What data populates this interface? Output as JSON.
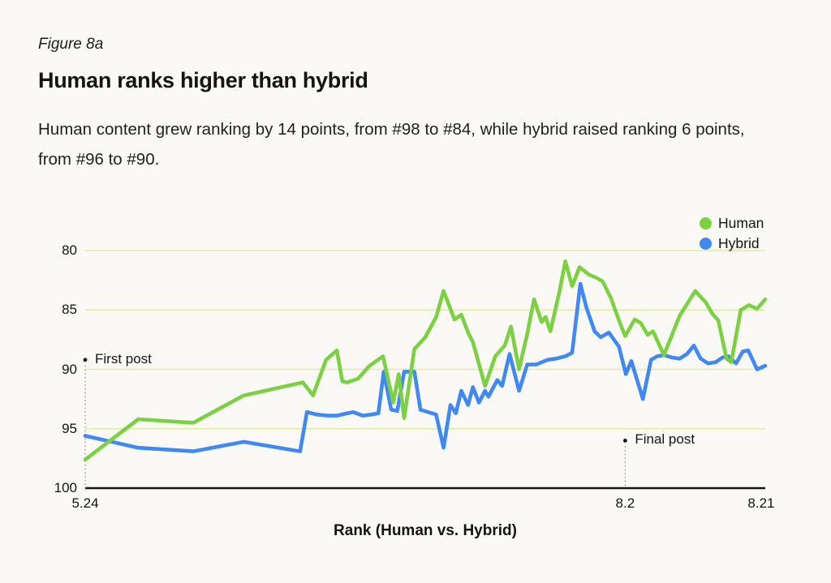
{
  "header": {
    "figure_label": "Figure 8a",
    "title": "Human ranks higher than hybrid",
    "subtitle": "Human content grew ranking by 14 points, from #98 to #84, while hybrid raised ranking 6 points, from #96 to #90."
  },
  "chart_data": {
    "type": "line",
    "title": "Human ranks higher than hybrid",
    "x_axis": {
      "label": "Rank (Human vs. Hybrid)",
      "ticks": [
        {
          "label": "5.24",
          "pct": 0
        },
        {
          "label": "8.2",
          "pct": 79.4
        },
        {
          "label": "8.21",
          "pct": 99.4
        }
      ]
    },
    "y_axis": {
      "min": 80,
      "max": 100,
      "inverted": true,
      "grid": true,
      "ticks": [
        {
          "label": "80",
          "rank": 80
        },
        {
          "label": "85",
          "rank": 85
        },
        {
          "label": "90",
          "rank": 90
        },
        {
          "label": "95",
          "rank": 95
        },
        {
          "label": "100",
          "rank": 100
        }
      ]
    },
    "annotations": [
      {
        "label": "First post",
        "x_pct": 0,
        "rank": 89.2
      },
      {
        "label": "Final post",
        "x_pct": 79.4,
        "rank": 96.0
      }
    ],
    "legend_position": "top-right",
    "series": [
      {
        "name": "Human",
        "color": "#7cd142",
        "points": [
          [
            0,
            97.6
          ],
          [
            7.8,
            94.2
          ],
          [
            15.9,
            94.5
          ],
          [
            23.3,
            92.2
          ],
          [
            32,
            91.1
          ],
          [
            33.5,
            92.2
          ],
          [
            35.4,
            89.2
          ],
          [
            37,
            88.4
          ],
          [
            37.8,
            91
          ],
          [
            38.5,
            91.1
          ],
          [
            40.1,
            90.8
          ],
          [
            41.8,
            89.7
          ],
          [
            43.8,
            88.9
          ],
          [
            45.3,
            92.8
          ],
          [
            46.1,
            90.4
          ],
          [
            46.9,
            94.1
          ],
          [
            48.4,
            88.3
          ],
          [
            50,
            87.3
          ],
          [
            51.6,
            85.6
          ],
          [
            52.7,
            83.4
          ],
          [
            54.3,
            85.8
          ],
          [
            55.3,
            85.4
          ],
          [
            56.3,
            86.9
          ],
          [
            57,
            87.7
          ],
          [
            58.8,
            91.4
          ],
          [
            60.3,
            88.9
          ],
          [
            61.7,
            88
          ],
          [
            62.6,
            86.4
          ],
          [
            63.8,
            90
          ],
          [
            65,
            87
          ],
          [
            66,
            84.1
          ],
          [
            67.1,
            86
          ],
          [
            67.7,
            85.6
          ],
          [
            68.4,
            86.8
          ],
          [
            69.8,
            83.3
          ],
          [
            70.6,
            80.9
          ],
          [
            71.6,
            83
          ],
          [
            72.7,
            81.4
          ],
          [
            74,
            82
          ],
          [
            75.2,
            82.3
          ],
          [
            76.1,
            82.6
          ],
          [
            77.3,
            84
          ],
          [
            78.5,
            85.9
          ],
          [
            79.4,
            87.2
          ],
          [
            80.8,
            85.8
          ],
          [
            81.7,
            86.1
          ],
          [
            82.7,
            87.1
          ],
          [
            83.5,
            86.8
          ],
          [
            85.1,
            88.8
          ],
          [
            87.4,
            85.5
          ],
          [
            89.7,
            83.4
          ],
          [
            91.3,
            84.4
          ],
          [
            92.2,
            85.3
          ],
          [
            93.1,
            85.9
          ],
          [
            94.3,
            89.1
          ],
          [
            95,
            89.4
          ],
          [
            96.4,
            85
          ],
          [
            97.6,
            84.6
          ],
          [
            98.8,
            84.9
          ],
          [
            100,
            84.1
          ]
        ]
      },
      {
        "name": "Hybrid",
        "color": "#4189f2",
        "points": [
          [
            0,
            95.6
          ],
          [
            7.8,
            96.6
          ],
          [
            15.9,
            96.9
          ],
          [
            23.3,
            96.1
          ],
          [
            31.6,
            96.9
          ],
          [
            32.6,
            93.6
          ],
          [
            34,
            93.8
          ],
          [
            35.6,
            93.9
          ],
          [
            37,
            93.9
          ],
          [
            38.5,
            93.7
          ],
          [
            39.4,
            93.6
          ],
          [
            40.8,
            93.9
          ],
          [
            42.1,
            93.8
          ],
          [
            43.1,
            93.7
          ],
          [
            43.9,
            90.2
          ],
          [
            45,
            93.4
          ],
          [
            45.9,
            93.5
          ],
          [
            46.9,
            90.2
          ],
          [
            48.4,
            90.2
          ],
          [
            49.3,
            93.4
          ],
          [
            50.4,
            93.6
          ],
          [
            51.6,
            93.8
          ],
          [
            52.7,
            96.6
          ],
          [
            53.7,
            93
          ],
          [
            54.5,
            93.7
          ],
          [
            55.3,
            91.8
          ],
          [
            56.3,
            93
          ],
          [
            57,
            91.5
          ],
          [
            57.9,
            92.8
          ],
          [
            58.8,
            91.8
          ],
          [
            59.3,
            92.3
          ],
          [
            60.6,
            90.9
          ],
          [
            61.3,
            91.4
          ],
          [
            62.4,
            88.7
          ],
          [
            63.8,
            91.8
          ],
          [
            65,
            89.6
          ],
          [
            66.3,
            89.6
          ],
          [
            68,
            89.2
          ],
          [
            69.2,
            89.1
          ],
          [
            70.6,
            88.9
          ],
          [
            71.6,
            88.6
          ],
          [
            72.8,
            82.8
          ],
          [
            73.7,
            84.8
          ],
          [
            74.9,
            86.8
          ],
          [
            75.8,
            87.3
          ],
          [
            77,
            86.9
          ],
          [
            78.5,
            88.1
          ],
          [
            79.5,
            90.4
          ],
          [
            80.3,
            89.3
          ],
          [
            82,
            92.5
          ],
          [
            83.2,
            89.2
          ],
          [
            84.1,
            88.9
          ],
          [
            85.1,
            88.8
          ],
          [
            86.3,
            89
          ],
          [
            87.4,
            89.1
          ],
          [
            88.5,
            88.7
          ],
          [
            89.5,
            88
          ],
          [
            90.5,
            89.1
          ],
          [
            91.6,
            89.5
          ],
          [
            92.7,
            89.4
          ],
          [
            93.7,
            89
          ],
          [
            94.6,
            88.9
          ],
          [
            95.7,
            89.5
          ],
          [
            96.7,
            88.5
          ],
          [
            97.5,
            88.4
          ],
          [
            98.8,
            90
          ],
          [
            100,
            89.7
          ]
        ]
      }
    ],
    "colors": {
      "grid": "#dfeca3",
      "axis": "#141413",
      "annotation_line": "#8f8f88",
      "background": "#faf9f5"
    }
  }
}
